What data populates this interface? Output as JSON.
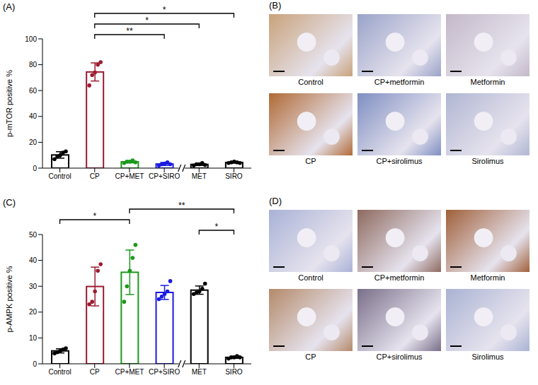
{
  "chart_data": [
    {
      "type": "bar",
      "panel": "(A)",
      "y_label": "p-mTOR positive %",
      "categories": [
        "Control",
        "CP",
        "CP+MET",
        "CP+SIRO",
        "MET",
        "SIRO"
      ],
      "values": [
        10.2,
        74.4,
        4.9,
        3.2,
        2.9,
        4.4
      ],
      "errors": [
        2.5,
        7,
        0.8,
        1.2,
        0.8,
        0.5
      ],
      "points": [
        [
          7,
          9,
          10,
          12,
          13
        ],
        [
          64,
          72,
          74,
          80,
          82
        ],
        [
          4,
          5,
          5,
          6,
          4.5
        ],
        [
          2,
          3,
          3.5,
          4.5,
          3
        ],
        [
          2,
          3,
          3,
          4,
          2.5
        ],
        [
          4,
          4.5,
          5,
          4.5,
          4
        ]
      ],
      "colors": [
        "#000000",
        "#9b1b30",
        "#1a9a1a",
        "#1a1ae0",
        "#000000",
        "#000000"
      ],
      "ylim": [
        0,
        100
      ],
      "yticks": [
        0,
        20,
        40,
        60,
        80,
        100
      ],
      "significance": [
        {
          "from": "CP",
          "to": "CP+SIRO",
          "label": "**"
        },
        {
          "from": "CP",
          "to": "MET",
          "label": "*"
        },
        {
          "from": "CP",
          "to": "SIRO",
          "label": "*"
        }
      ]
    },
    {
      "type": "bar",
      "panel": "(C)",
      "y_label": "p-AMPK positive %",
      "categories": [
        "Control",
        "CP",
        "CP+MET",
        "CP+SIRO",
        "MET",
        "SIRO"
      ],
      "values": [
        5,
        29.9,
        35.4,
        27.6,
        28.5,
        2.5
      ],
      "errors": [
        0.8,
        7.5,
        8.6,
        2.7,
        1.6,
        0.4
      ],
      "points": [
        [
          4,
          4.5,
          5,
          5.5,
          6
        ],
        [
          23,
          24,
          28,
          36,
          38.5
        ],
        [
          24,
          30,
          36,
          41,
          46
        ],
        [
          25,
          26,
          27,
          28,
          32
        ],
        [
          27,
          27.5,
          28,
          29,
          31
        ],
        [
          2,
          2.5,
          2.5,
          3,
          2.5
        ]
      ],
      "colors": [
        "#000000",
        "#9b1b30",
        "#1a9a1a",
        "#1a1ae0",
        "#000000",
        "#000000"
      ],
      "ylim": [
        0,
        50
      ],
      "yticks": [
        0,
        10,
        20,
        30,
        40,
        50
      ],
      "significance": [
        {
          "from": "MET",
          "to": "SIRO",
          "label": "*"
        },
        {
          "from": "Control",
          "to": "CP+MET",
          "label": "*"
        },
        {
          "from": "CP+MET",
          "to": "SIRO",
          "label": "**"
        }
      ]
    }
  ],
  "image_panels": [
    {
      "panel": "(B)",
      "captions": [
        [
          "Control",
          "CP+metformin",
          "Metformin"
        ],
        [
          "CP",
          "CP+sirolimus",
          "Sirolimus"
        ]
      ]
    },
    {
      "panel": "(D)",
      "captions": [
        [
          "Control",
          "CP+metformin",
          "Metformin"
        ],
        [
          "CP",
          "CP+sirolimus",
          "Sirolimus"
        ]
      ]
    }
  ]
}
